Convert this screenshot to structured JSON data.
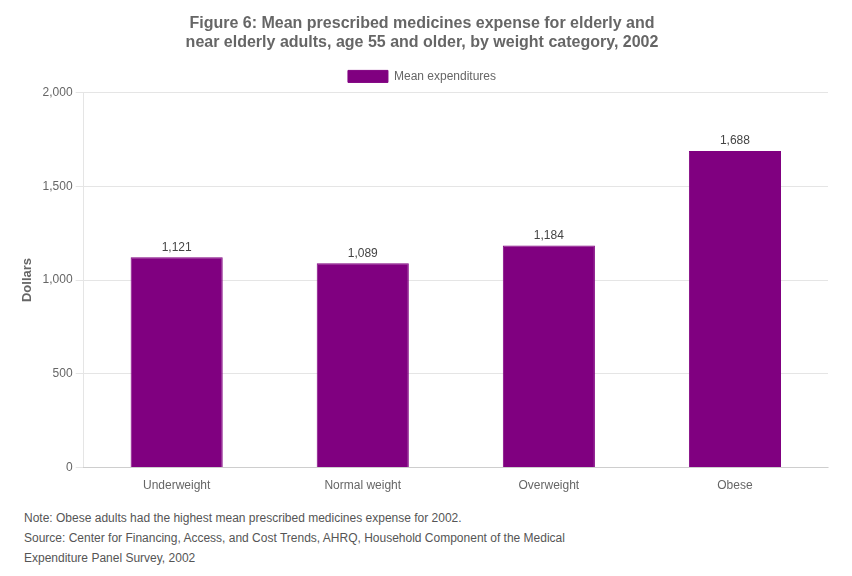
{
  "chart_data": {
    "type": "bar",
    "title": [
      "Figure 6: Mean prescribed medicines expense for elderly and",
      "near elderly adults, age 55 and older, by weight category, 2002"
    ],
    "categories": [
      "Underweight",
      "Normal weight",
      "Overweight",
      "Obese"
    ],
    "series": [
      {
        "name": "Mean expenditures",
        "color": "#800080",
        "values": [
          1121,
          1089,
          1184,
          1688
        ],
        "value_labels": [
          "1,121",
          "1,089",
          "1,184",
          "1,688"
        ]
      }
    ],
    "ylabel": "Dollars",
    "ylim": [
      0,
      2000
    ],
    "yticks": [
      0,
      500,
      {
        "value": 1000,
        "label": "1,000"
      },
      {
        "value": 1500,
        "label": "1,500"
      },
      {
        "value": 2000,
        "label": "2,000"
      }
    ],
    "grid": true,
    "legend": "top",
    "data_labels": true,
    "annotations": [
      "Note: Obese adults had the highest mean prescribed medicines expense for 2002.",
      "Source: Center for Financing, Access, and Cost Trends, AHRQ, Household Component of the Medical",
      "Expenditure Panel Survey, 2002"
    ]
  }
}
